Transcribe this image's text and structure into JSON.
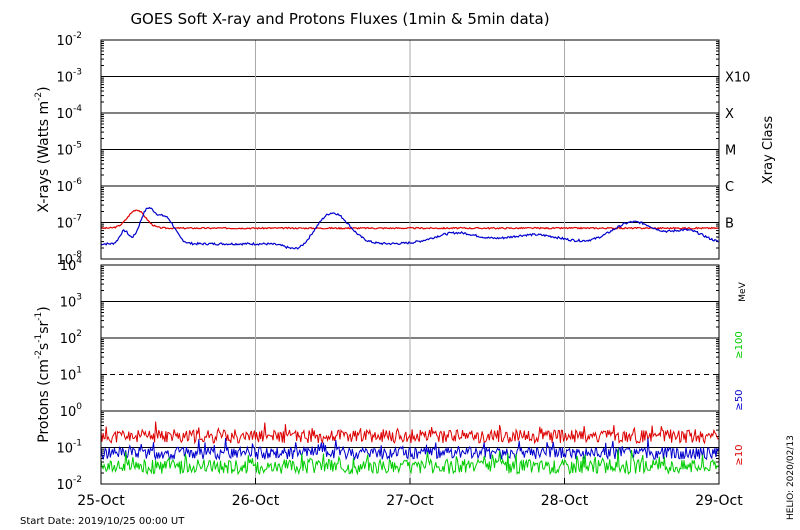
{
  "chart_data": {
    "type": "line",
    "title": "GOES Soft X-ray and Protons Fluxes   (1min & 5min data)",
    "x_tick_labels": [
      "25-Oct",
      "26-Oct",
      "27-Oct",
      "28-Oct",
      "29-Oct"
    ],
    "x_range_days": [
      0,
      4
    ],
    "start_date_label": "Start Date: 2019/10/25 00:00 UT",
    "footer_label": "HELIO: 2020/02/13",
    "panels": [
      {
        "id": "xray",
        "ylabel_base": "X-rays (Watts m",
        "ylabel_exp": "-2",
        "ylabel_close": ")",
        "yscale": "log",
        "ylim": [
          1e-08,
          0.01
        ],
        "y_ticks": [
          {
            "base": "10",
            "exp": "-8",
            "value": 1e-08
          },
          {
            "base": "10",
            "exp": "-7",
            "value": 1e-07
          },
          {
            "base": "10",
            "exp": "-6",
            "value": 1e-06
          },
          {
            "base": "10",
            "exp": "-5",
            "value": 1e-05
          },
          {
            "base": "10",
            "exp": "-4",
            "value": 0.0001
          },
          {
            "base": "10",
            "exp": "-3",
            "value": 0.001
          },
          {
            "base": "10",
            "exp": "-2",
            "value": 0.01
          }
        ],
        "right_label": "Xray Class",
        "classes": [
          {
            "label": "B",
            "value": 1e-07
          },
          {
            "label": "C",
            "value": 1e-06
          },
          {
            "label": "M",
            "value": 1e-05
          },
          {
            "label": "X",
            "value": 0.0001
          },
          {
            "label": "X10",
            "value": 0.001
          }
        ],
        "series": [
          {
            "color": "#dd0000",
            "base": 7e-08,
            "noise": 0.02,
            "seed": 3,
            "bumps": [
              {
                "day": 0.23,
                "amp": 0.5,
                "width": 0.08
              }
            ]
          },
          {
            "color": "#0000cc",
            "base": 2.6e-08,
            "noise": 0.03,
            "seed": 7,
            "bumps": [
              {
                "day": 0.15,
                "amp": 0.35,
                "width": 0.04
              },
              {
                "day": 0.3,
                "amp": 0.9,
                "width": 0.07
              },
              {
                "day": 0.42,
                "amp": 0.7,
                "width": 0.08
              },
              {
                "day": 1.28,
                "amp": -0.2,
                "width": 0.1
              },
              {
                "day": 1.5,
                "amp": 0.85,
                "width": 0.15
              },
              {
                "day": 2.3,
                "amp": 0.3,
                "width": 0.2
              },
              {
                "day": 2.8,
                "amp": 0.25,
                "width": 0.25
              },
              {
                "day": 3.45,
                "amp": 0.6,
                "width": 0.2
              },
              {
                "day": 3.8,
                "amp": 0.35,
                "width": 0.15
              }
            ]
          }
        ]
      },
      {
        "id": "protons",
        "ylabel_base": "Protons (cm",
        "ylabel_exp1": "-2",
        "ylabel_mid": "s",
        "ylabel_exp2": "-1",
        "ylabel_mid2": "sr",
        "ylabel_exp3": "-1",
        "ylabel_close": ")",
        "yscale": "log",
        "ylim": [
          0.01,
          10000
        ],
        "y_ticks": [
          {
            "base": "10",
            "exp": "-2",
            "value": 0.01
          },
          {
            "base": "10",
            "exp": "-1",
            "value": 0.1
          },
          {
            "base": "10",
            "exp": "0",
            "value": 1
          },
          {
            "base": "10",
            "exp": "1",
            "value": 10
          },
          {
            "base": "10",
            "exp": "2",
            "value": 100
          },
          {
            "base": "10",
            "exp": "3",
            "value": 1000
          },
          {
            "base": "10",
            "exp": "4",
            "value": 10000
          }
        ],
        "threshold_value": 10,
        "right_unit": "MeV",
        "legend": [
          {
            "label": "≥100",
            "color": "#00cc00"
          },
          {
            "label": "≥50",
            "color": "#0000cc"
          },
          {
            "label": "≥10",
            "color": "#dd0000"
          }
        ],
        "series": [
          {
            "color": "#dd0000",
            "base": 0.2,
            "noise": 0.18,
            "seed": 11
          },
          {
            "color": "#0000cc",
            "base": 0.07,
            "noise": 0.17,
            "seed": 13
          },
          {
            "color": "#00cc00",
            "base": 0.03,
            "noise": 0.2,
            "seed": 17
          }
        ]
      }
    ]
  }
}
